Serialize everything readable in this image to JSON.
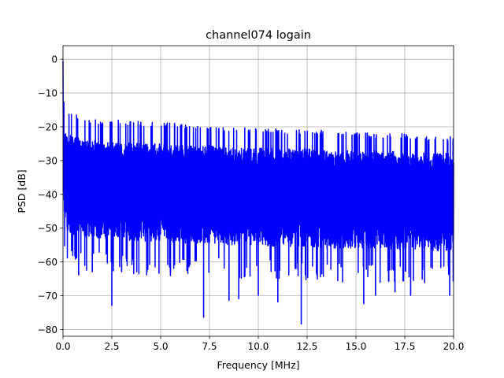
{
  "chart_data": {
    "type": "line",
    "title": "channel074 logain",
    "xlabel": "Frequency [MHz]",
    "ylabel": "PSD [dB]",
    "xlim": [
      0,
      20
    ],
    "ylim": [
      -82,
      4
    ],
    "x_ticks": [
      0.0,
      2.5,
      5.0,
      7.5,
      10.0,
      12.5,
      15.0,
      17.5,
      20.0
    ],
    "x_tick_labels": [
      "0.0",
      "2.5",
      "5.0",
      "7.5",
      "10.0",
      "12.5",
      "15.0",
      "17.5",
      "20.0"
    ],
    "y_ticks": [
      0,
      -10,
      -20,
      -30,
      -40,
      -50,
      -60,
      -70,
      -80
    ],
    "y_tick_labels": [
      "0",
      "−10",
      "−20",
      "−30",
      "−40",
      "−50",
      "−60",
      "−70",
      "−80"
    ],
    "grid": true,
    "series": [
      {
        "color": "#0000ff",
        "description": "dense noisy PSD spectrum",
        "x": [
          0.0,
          0.02,
          0.05,
          0.1,
          0.2,
          0.3,
          0.5,
          0.75,
          1.0,
          1.5,
          2.0,
          2.5,
          3.0,
          4.0,
          5.0,
          6.0,
          7.5,
          8.5,
          10.0,
          11.0,
          12.5,
          13.5,
          15.0,
          16.0,
          17.5,
          18.5,
          20.0
        ],
        "upper_envelope": [
          -0.5,
          -10,
          -13,
          -13.5,
          -14,
          -15,
          -16,
          -16.5,
          -17,
          -17.5,
          -18,
          -18,
          -18,
          -18.5,
          -18.5,
          -19,
          -19.5,
          -20,
          -20.5,
          -20.5,
          -21,
          -21,
          -21.5,
          -22,
          -22,
          -22.5,
          -23
        ],
        "typical_high": [
          -5,
          -18,
          -20,
          -21,
          -22,
          -22,
          -23,
          -23,
          -23.5,
          -24,
          -24,
          -24.5,
          -24.5,
          -25,
          -25,
          -25.5,
          -25.5,
          -26,
          -26,
          -26.5,
          -26.5,
          -27,
          -27,
          -27,
          -27.5,
          -27.5,
          -28
        ],
        "typical_low": [
          -10,
          -40,
          -45,
          -48,
          -50,
          -51,
          -52,
          -52,
          -52.5,
          -53,
          -53,
          -53.5,
          -53.5,
          -54,
          -54,
          -54.5,
          -54.5,
          -55,
          -55,
          -55.5,
          -55.5,
          -56,
          -56,
          -56,
          -56.5,
          -56.5,
          -57
        ],
        "deep_nulls": [
          [
            0.8,
            -64
          ],
          [
            1.5,
            -63
          ],
          [
            2.5,
            -73
          ],
          [
            3.0,
            -63
          ],
          [
            4.3,
            -63
          ],
          [
            5.5,
            -63
          ],
          [
            7.2,
            -76.5
          ],
          [
            8.5,
            -71.5
          ],
          [
            9.0,
            -71
          ],
          [
            10.0,
            -70
          ],
          [
            11.0,
            -72
          ],
          [
            12.2,
            -78.5
          ],
          [
            13.0,
            -64
          ],
          [
            15.4,
            -72.5
          ],
          [
            16.0,
            -70
          ],
          [
            17.0,
            -69
          ],
          [
            17.8,
            -70
          ],
          [
            19.8,
            -70
          ]
        ]
      }
    ]
  }
}
